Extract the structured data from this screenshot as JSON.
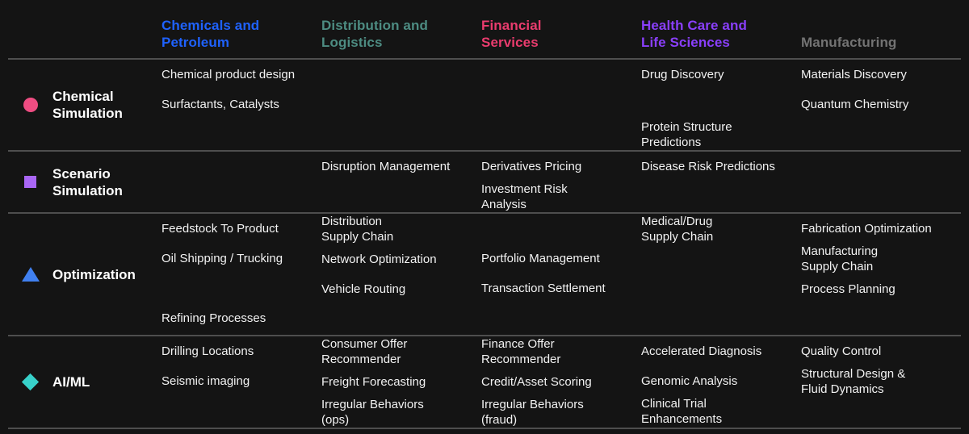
{
  "chart_data": {
    "type": "table",
    "title": "Industry use-case matrix by capability",
    "columns": [
      {
        "key": "chemicals-and-petroleum",
        "label": "Chemicals and\nPetroleum",
        "color": "#1f62fe"
      },
      {
        "key": "distribution-and-logistics",
        "label": "Distribution and\nLogistics",
        "color": "#4d8c82"
      },
      {
        "key": "financial-services",
        "label": "Financial\nServices",
        "color": "#ea3c6e"
      },
      {
        "key": "health-care-and-life-sciences",
        "label": "Health Care and\nLife Sciences",
        "color": "#8a3ffc"
      },
      {
        "key": "manufacturing",
        "label": "Manufacturing",
        "color": "#737373"
      }
    ],
    "rows": [
      {
        "label": "Chemical\nSimulation",
        "icon": "circle-icon",
        "icon_shape": "circle",
        "icon_color": "#ee4d82",
        "cells": [
          [
            "Chemical product design",
            "Surfactants, Catalysts"
          ],
          [],
          [],
          [
            "Drug Discovery",
            "",
            "Protein Structure\nPredictions"
          ],
          [
            "Materials Discovery",
            "Quantum Chemistry"
          ]
        ]
      },
      {
        "label": "Scenario\nSimulation",
        "icon": "square-icon",
        "icon_shape": "square",
        "icon_color": "#a966f5",
        "cells": [
          [],
          [
            "Disruption Management"
          ],
          [
            "Derivatives Pricing",
            "Investment Risk\nAnalysis"
          ],
          [
            "Disease Risk Predictions"
          ],
          []
        ]
      },
      {
        "label": "Optimization",
        "icon": "triangle-icon",
        "icon_shape": "triangle",
        "icon_color": "#4080f0",
        "cells": [
          [
            "Feedstock To Product",
            "Oil Shipping / Trucking",
            "",
            "Refining Processes"
          ],
          [
            "Distribution\nSupply Chain",
            "Network Optimization",
            "Vehicle Routing"
          ],
          [
            "",
            "Portfolio Management",
            "Transaction Settlement"
          ],
          [
            "Medical/Drug\nSupply Chain"
          ],
          [
            "Fabrication Optimization",
            "Manufacturing\nSupply Chain",
            "Process Planning"
          ]
        ]
      },
      {
        "label": "AI/ML",
        "icon": "diamond-icon",
        "icon_shape": "diamond",
        "icon_color": "#38d1ca",
        "cells": [
          [
            "Drilling Locations",
            "Seismic imaging"
          ],
          [
            "Consumer Offer\nRecommender",
            "Freight Forecasting",
            "Irregular Behaviors\n(ops)"
          ],
          [
            "Finance Offer\nRecommender",
            "Credit/Asset Scoring",
            "Irregular Behaviors\n(fraud)"
          ],
          [
            "Accelerated Diagnosis",
            "Genomic Analysis",
            "Clinical Trial\nEnhancements"
          ],
          [
            "Quality Control",
            "Structural Design &\nFluid Dynamics"
          ]
        ]
      }
    ]
  }
}
